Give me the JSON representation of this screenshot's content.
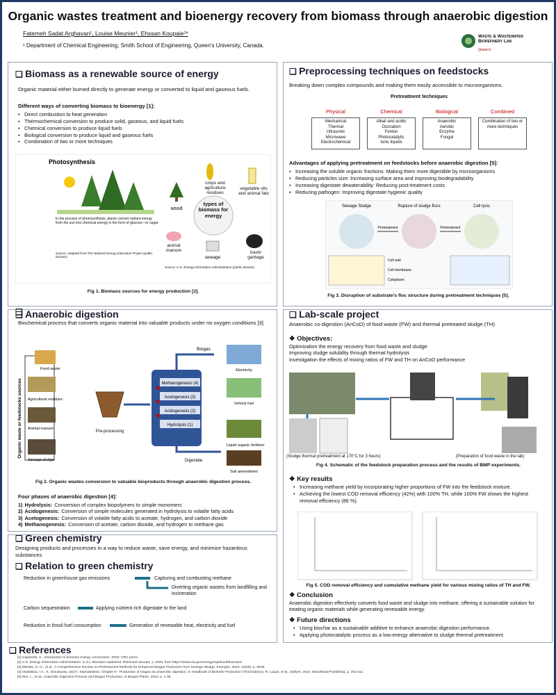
{
  "header": {
    "title": "Organic wastes treatment and bioenergy recovery from biomass through anaerobic digestion",
    "authors": "Fatemeh Sadat Arghavan¹, Louise Meunier¹, Ehssan Koupaie¹*",
    "affiliation": "¹ Department of Chemical Engineering, Smith School of Engineering, Queen's University, Canada.",
    "logo": "Waste & Wastewater Biorefinery Lab",
    "logo_sub": "Queen's"
  },
  "biomass": {
    "title": "Biomass as a renewable source of energy",
    "intro": "Organic material either burned directly to generate energy or converted to liquid and gaseous fuels.",
    "list_title": "Different ways of converting biomass to bioenergy [1]:",
    "items": [
      "Direct combustion to heat generation",
      "Thermochemical conversion to produce solid, gaseous, and liquid fuels",
      "Chemical conversion to produce liquid fuels",
      "Biological conversion to produce liquid and gaseous fuels",
      "Combination of two or more techniques"
    ],
    "figure": {
      "photosynthesis_title": "Photosynthesis",
      "photosynthesis_text": "In the process of photosynthesis, plants convert radiant energy from the sun into chemical energy in the form of glucose—or sugar",
      "source_left": "Source: Adapted from The National Energy Education Project (public domain)",
      "center": "types of biomass for energy",
      "labels": [
        "wood",
        "crops and agriculture residues",
        "vegetable oils and animal fats",
        "trash/ garbage",
        "sewage",
        "animal manure"
      ],
      "source_right": "Source: U.S. Energy Information Administration (public domain)"
    },
    "caption": "Fig 1. Biomass sources for energy production [2]."
  },
  "preprocessing": {
    "title": "Preprocessing techniques on feedstocks",
    "intro": "Breaking down complex compounds and  making them easily accessible to microorganisms.",
    "diagram_title": "Pretreatment techniques",
    "columns": [
      {
        "name": "Physical",
        "items": [
          "Mechanical",
          "Thermal",
          "Ultrasonic",
          "Microwave",
          "Electrochemical"
        ]
      },
      {
        "name": "Chemical",
        "items": [
          "Alkali and acidic",
          "Ozonation",
          "Fenton",
          "Photocatalytic",
          "Ionic liquids"
        ]
      },
      {
        "name": "Biological",
        "items": [
          "Anaerobic",
          "Aerobic",
          "Enzyme",
          "Fungal"
        ]
      },
      {
        "name": "Combined",
        "items": [
          "Combination of two or more techniques"
        ]
      }
    ],
    "advantages_title": "Advantages of applying pretreatment on feedstocks before anaerobic digestion [5]:",
    "advantages": [
      "Increasing the soluble organic fractions: Making them more digestible by microorganisms",
      "Reducing particles size: Increasing surface area and improving biodegradability",
      "Increasing digestate dewaterability: Reducing post-treatment costs",
      "Reducing pathogen: Improving digestate hygienic quality"
    ],
    "figure_labels": [
      "Sewage Sludge",
      "Rupture of sludge flocs",
      "Cell lysis",
      "Pretreatment",
      "Pretreatment",
      "Cell wall",
      "Cell membrane",
      "Cytoplasm"
    ],
    "caption": "Fig 3. Disruption of substrate's floc structure during pretreatment techniques  [5]."
  },
  "anaerobic": {
    "title": "Anaerobic digestion",
    "intro": "Biochemical process that converts organic material into valuable products under no oxygen conditions [3].",
    "figure": {
      "side_label": "Organic waste or feedstocks sources",
      "sources": [
        "Food waste",
        "Agricultural residues",
        "Animal manure",
        "Sewage sludge"
      ],
      "preprocessing": "Pre-processing",
      "stages": [
        "Methanogenesis (4)",
        "Acetogenesis (3)",
        "Acidogenesis (2)",
        "Hydrolysis (1)"
      ],
      "biogas": "Biogas",
      "digestate": "Digestate",
      "products": [
        "Electricity",
        "Vehicle fuel",
        "Liquid organic fertilizer",
        "Soil amendment"
      ]
    },
    "caption": "Fig 2. Organic wastes conversion to valuable bioproducts through anaerobic digestion process.",
    "phases_title": "Four phases of anaerobic digestion [4]:",
    "phases": [
      {
        "n": "1)",
        "name": "Hydrolysis:",
        "text": "Conversion of complex biopolymers to simple monomers"
      },
      {
        "n": "2)",
        "name": "Acidogenesis:",
        "text": "Conversion of simple molecules generated in hydrolysis to volatile fatty acids"
      },
      {
        "n": "3)",
        "name": "Acetogenesis:",
        "text": "Conversion of volatile fatty acids to acetate, hydrogen, and carbon dioxide"
      },
      {
        "n": "4)",
        "name": "Methanogenesis:",
        "text": "Conversion of acetate, carbon dioxide, and hydrogen to methane gas"
      }
    ]
  },
  "lab": {
    "title": "Lab-scale project",
    "intro": "Anaerobic co-digestion (AnCoD) of food waste (FW) and thermal pretreated sludge (TH)",
    "objectives_title": "Objectives:",
    "objectives": [
      "Optimization the energy recovery from food waste and sludge",
      "Improving sludge solubility through thermal hydrolysis",
      "Investigation the effects of mixing ratios of FW and TH on AnCoD performance"
    ],
    "photo_labels": [
      "(Sludge thermal pretreatment at 170°C for 3 hours)",
      "(Preparation of food waste in the lab)"
    ],
    "fig4_caption": "Fig 4. Schematic of the feedstock preparation process and the results of BMP experiments.",
    "results_title": "Key results",
    "results": [
      "Increasing methane yield by incorporating higher proportions of FW into the feedstock mixture.",
      "Achieving the lowest COD removal efficiency (42%) with 100% TH, while 100% FW shows the highest removal efficiency (86 %)."
    ],
    "fig5_caption": "Fig 5.  COD removal efficiency and cumulative methane yield for various mixing ratios of TH and FW.",
    "conclusion_title": "Conclusion",
    "conclusion": "Anaerobic digestion effectively converts food waste and sludge into methane, offering a sustainable solution for treating organic materials while generating renewable energy.",
    "future_title": "Future directions",
    "future": [
      "Using biochar as a sustainable additive to enhance anaerobic digestion performance.",
      "Applying photocatalytic process as a low-energy alternative to sludge thermal pretreatment."
    ]
  },
  "green": {
    "title": "Green chemistry",
    "text": "Designing products and processes in a way to reduce waste, save energy, and minimize hazardous substances",
    "relation_title": "Relation to green chemistry",
    "rows": [
      [
        "Reduction in greenhouse gas emissions",
        "Capturing and combusting methane"
      ],
      [
        "Carbon sequestration",
        "Applying nutrient rich digestate to the land"
      ],
      [
        "Reduction in fossil fuel consumption",
        "Generation of renewable heat, electricity and fuel"
      ]
    ],
    "extra": "Diverting organic wastes from landfilling and incineration"
  },
  "references": {
    "title": "References",
    "items": [
      "[1] Capareda, S., Introduction to biomass energy conversions. 2023: CRC press.",
      "[2] U.S. Energy Information Administration. (n.d.). Biomass explained. Retrieved January 1, 2025, from https://www.eia.gov/energyexplained/biomass/",
      "[3] Mitraka, G.-C., et al., A Comprehensive Review on Pretreatment Methods for Enhanced Biogas Production from Sewage Sludge. Energies, 2022. 15(18): p. 6536.",
      "[4] Vasilakiou, I.A., K. Gioulounta, and K. Stamatelatou, Chapter 9 - Production of biogas via anaerobic digestion, in Handbook of Biofuels Production (Third Edition), R. Luque, et al., Editors. 2023, Woodhead Publishing. p. 253-311.",
      "[5] Wei, L., et al., Anaerobic Digestion Process and Biogas Production, in Biogas Plants. 2024. p. 1-35."
    ]
  }
}
